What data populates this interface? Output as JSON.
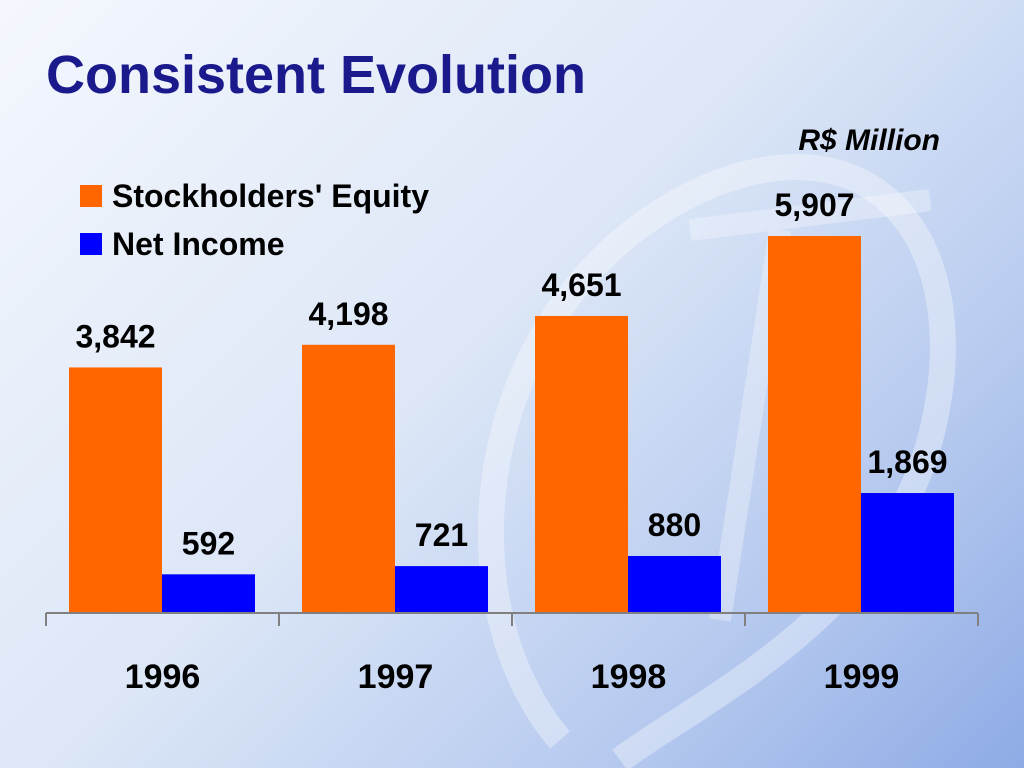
{
  "title": "Consistent Evolution",
  "unit_label": "R$ Million",
  "colors": {
    "equity": "#ff6600",
    "net_income": "#0000ff",
    "title": "#1a1a8c"
  },
  "legend": {
    "position": "top-left",
    "items": [
      {
        "label": "Stockholders' Equity",
        "color": "#ff6600"
      },
      {
        "label": "Net Income",
        "color": "#0000ff"
      }
    ]
  },
  "chart_data": {
    "type": "bar",
    "categories": [
      "1996",
      "1997",
      "1998",
      "1999"
    ],
    "series": [
      {
        "name": "Stockholders' Equity",
        "values": [
          3842,
          4198,
          4651,
          5907
        ],
        "labels": [
          "3,842",
          "4,198",
          "4,651",
          "5,907"
        ]
      },
      {
        "name": "Net Income",
        "values": [
          592,
          721,
          880,
          1869
        ],
        "labels": [
          "592",
          "721",
          "880",
          "1,869"
        ]
      }
    ],
    "title": "Consistent Evolution",
    "xlabel": "",
    "ylabel": "",
    "ylim": [
      0,
      5907
    ],
    "grid": false
  }
}
